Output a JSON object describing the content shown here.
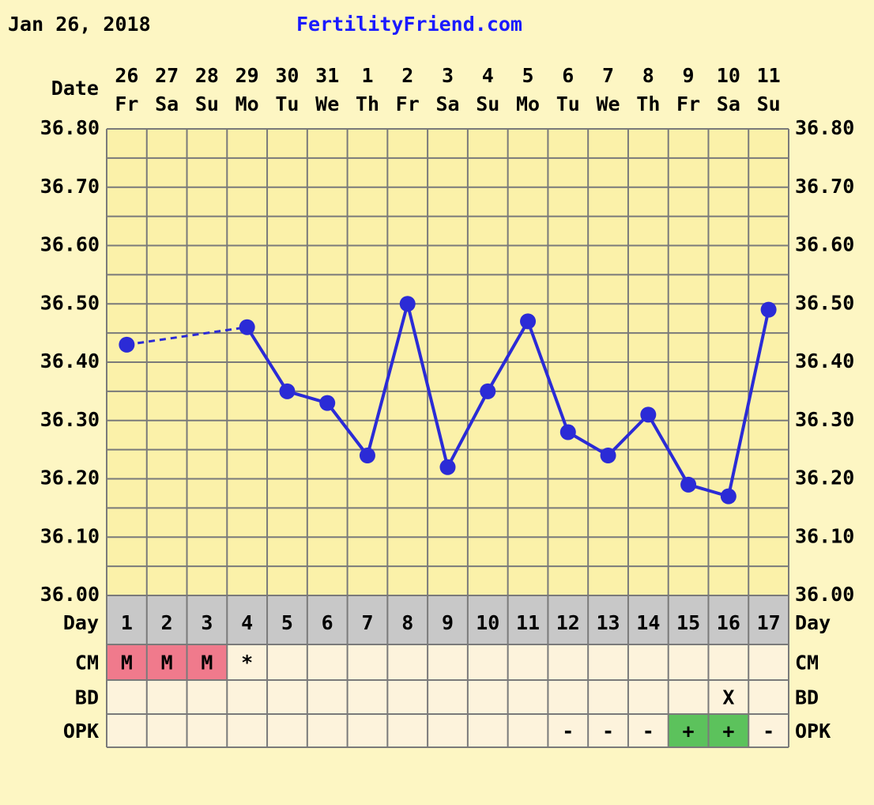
{
  "header": {
    "date": "Jan 26, 2018",
    "site": "FertilityFriend.com"
  },
  "chart_data": {
    "type": "line",
    "date_label": "Date",
    "dates": [
      "26",
      "27",
      "28",
      "29",
      "30",
      "31",
      "1",
      "2",
      "3",
      "4",
      "5",
      "6",
      "7",
      "8",
      "9",
      "10",
      "11"
    ],
    "weekdays": [
      "Fr",
      "Sa",
      "Su",
      "Mo",
      "Tu",
      "We",
      "Th",
      "Fr",
      "Sa",
      "Su",
      "Mo",
      "Tu",
      "We",
      "Th",
      "Fr",
      "Sa",
      "Su"
    ],
    "values": [
      36.43,
      null,
      null,
      36.46,
      36.35,
      36.33,
      36.24,
      36.5,
      36.22,
      36.35,
      36.47,
      36.28,
      36.24,
      36.31,
      36.19,
      36.17,
      36.49
    ],
    "color": "#2b2bd6",
    "ylim": [
      36.0,
      36.8
    ],
    "yticks": [
      {
        "value": 36.0,
        "label": "36.00"
      },
      {
        "value": 36.1,
        "label": "36.10"
      },
      {
        "value": 36.2,
        "label": "36.20"
      },
      {
        "value": 36.3,
        "label": "36.30"
      },
      {
        "value": 36.4,
        "label": "36.40"
      },
      {
        "value": 36.5,
        "label": "36.50"
      },
      {
        "value": 36.6,
        "label": "36.60"
      },
      {
        "value": 36.7,
        "label": "36.70"
      },
      {
        "value": 36.8,
        "label": "36.80"
      }
    ],
    "grid": true,
    "day_label": "Day",
    "days": [
      1,
      2,
      3,
      4,
      5,
      6,
      7,
      8,
      9,
      10,
      11,
      12,
      13,
      14,
      15,
      16,
      17
    ],
    "rows": [
      {
        "label": "CM",
        "cells": [
          "M",
          "M",
          "M",
          "*",
          null,
          null,
          null,
          null,
          null,
          null,
          null,
          null,
          null,
          null,
          null,
          null,
          null
        ]
      },
      {
        "label": "BD",
        "cells": [
          null,
          null,
          null,
          null,
          null,
          null,
          null,
          null,
          null,
          null,
          null,
          null,
          null,
          null,
          null,
          "X",
          null
        ]
      },
      {
        "label": "OPK",
        "cells": [
          null,
          null,
          null,
          null,
          null,
          null,
          null,
          null,
          null,
          null,
          null,
          "-",
          "-",
          "-",
          "+",
          "+",
          "-"
        ]
      }
    ],
    "cell_colors": {
      "M": "#f07a8c",
      "+": "#5cc25c"
    }
  }
}
